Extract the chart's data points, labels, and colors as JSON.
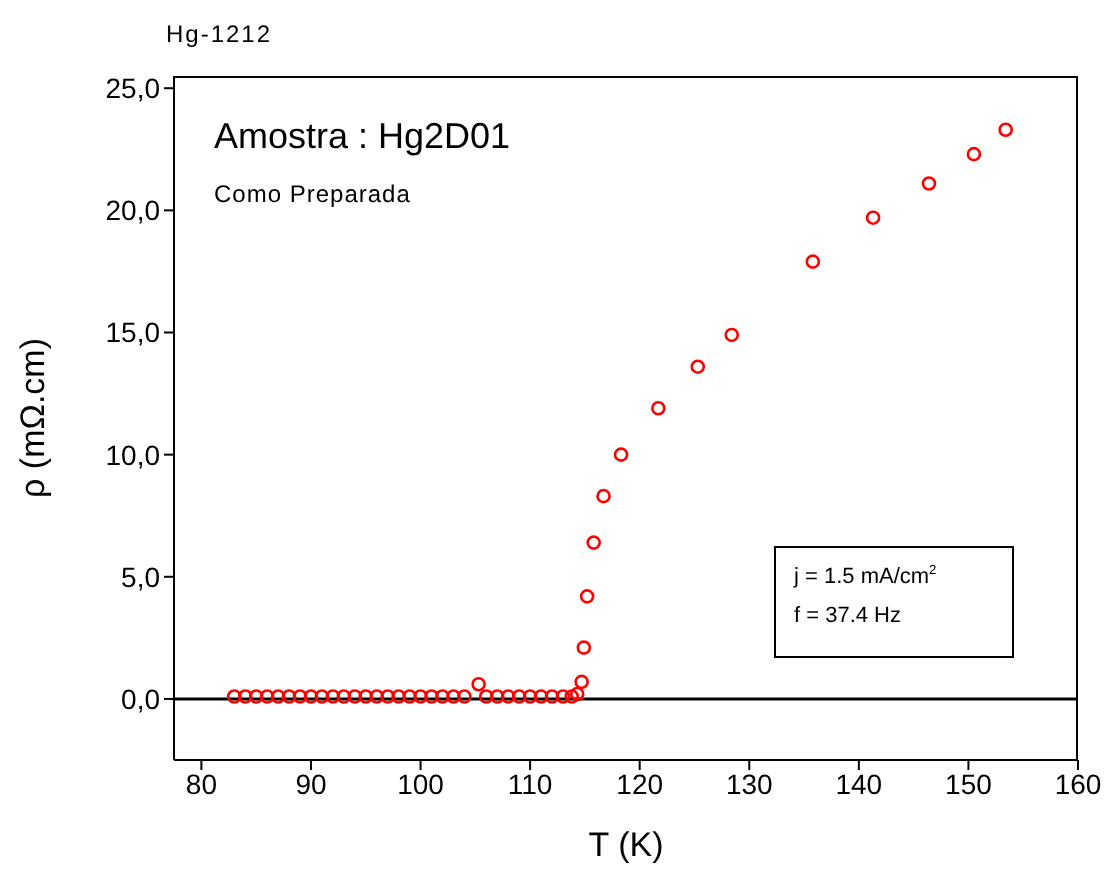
{
  "chart_data": {
    "type": "scatter",
    "title": "Hg-1212",
    "xlabel": "T (K)",
    "ylabel": "ρ (mΩ.cm)",
    "annotations": [
      "Amostra : Hg2D01",
      "Como Preparada",
      "j = 1.5 mA/cm$^{2}$",
      "f = 37.4 Hz"
    ],
    "xlim": [
      77.5,
      160
    ],
    "xticks": [
      80,
      90,
      100,
      110,
      120,
      130,
      140,
      150,
      160
    ],
    "ylim": [
      -2.5,
      25.5
    ],
    "yticks": [
      {
        "value": 0,
        "label": "0,0"
      },
      {
        "value": 5,
        "label": "5,0"
      },
      {
        "value": 10,
        "label": "10,0"
      },
      {
        "value": 15,
        "label": "15,0"
      },
      {
        "value": 20,
        "label": "20,0"
      },
      {
        "value": 25,
        "label": "25,0"
      }
    ],
    "grid": false,
    "marker": "circle",
    "ref_lines": [
      {
        "axis": "y",
        "value": 0,
        "color": "#000000"
      }
    ],
    "series": [
      {
        "color": "#ff0000",
        "x": [
          83,
          84,
          85,
          86,
          87,
          88,
          89,
          90,
          91,
          92,
          93,
          94,
          95,
          96,
          97,
          98,
          99,
          100,
          101,
          102,
          103,
          104,
          105.3,
          106,
          107,
          108,
          109,
          110,
          111,
          112,
          113,
          113.8,
          114.3,
          114.7,
          114.9,
          115.2,
          115.8,
          116.7,
          118.3,
          121.7,
          125.3,
          128.4,
          135.8,
          141.3,
          146.4,
          150.5,
          153.4
        ],
        "values": [
          0.1,
          0.1,
          0.1,
          0.1,
          0.1,
          0.1,
          0.1,
          0.1,
          0.1,
          0.1,
          0.1,
          0.1,
          0.1,
          0.1,
          0.1,
          0.1,
          0.1,
          0.1,
          0.1,
          0.1,
          0.1,
          0.1,
          0.6,
          0.1,
          0.1,
          0.1,
          0.1,
          0.1,
          0.1,
          0.1,
          0.1,
          0.1,
          0.2,
          0.7,
          2.1,
          4.2,
          6.4,
          8.3,
          10,
          11.9,
          13.6,
          14.9,
          17.9,
          19.7,
          21.1,
          22.3,
          23.3
        ]
      }
    ]
  }
}
